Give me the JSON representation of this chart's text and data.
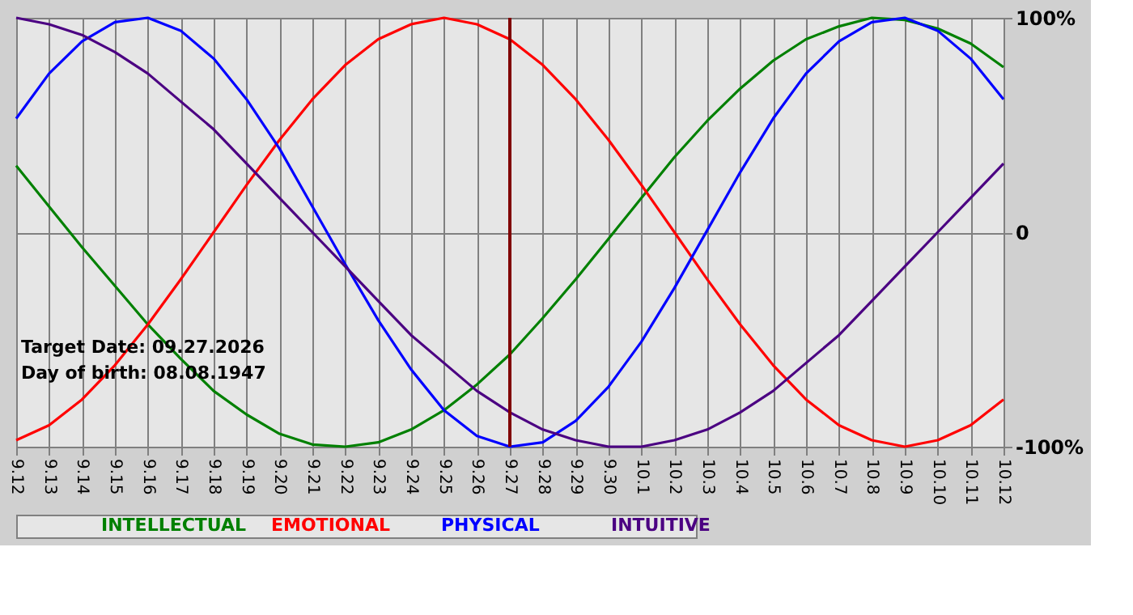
{
  "chart_data": {
    "type": "line",
    "categories": [
      "9.12",
      "9.13",
      "9.14",
      "9.15",
      "9.16",
      "9.17",
      "9.18",
      "9.19",
      "9.20",
      "9.21",
      "9.22",
      "9.23",
      "9.24",
      "9.25",
      "9.26",
      "9.27",
      "9.28",
      "9.29",
      "9.30",
      "10.1",
      "10.2",
      "10.3",
      "10.4",
      "10.5",
      "10.6",
      "10.7",
      "10.8",
      "10.9",
      "10.10",
      "10.11",
      "10.12"
    ],
    "series": [
      {
        "name": "INTELLECTUAL",
        "color": "#008000",
        "values": [
          31,
          12,
          -7,
          -25,
          -43,
          -59,
          -74,
          -85,
          -94,
          -99,
          -100,
          -98,
          -92,
          -83,
          -71,
          -57,
          -40,
          -22,
          -3,
          16,
          35,
          52,
          67,
          80,
          90,
          96,
          100,
          99,
          95,
          88,
          77
        ]
      },
      {
        "name": "EMOTIONAL",
        "color": "#ff0000",
        "values": [
          -97,
          -90,
          -78,
          -62,
          -43,
          -22,
          0,
          22,
          43,
          62,
          78,
          90,
          97,
          100,
          97,
          90,
          78,
          62,
          43,
          22,
          0,
          -22,
          -43,
          -62,
          -78,
          -90,
          -97,
          -100,
          -97,
          -90,
          -78
        ]
      },
      {
        "name": "PHYSICAL",
        "color": "#0000ff",
        "values": [
          53,
          74,
          89,
          98,
          100,
          94,
          81,
          62,
          39,
          12,
          -15,
          -41,
          -64,
          -83,
          -95,
          -100,
          -98,
          -88,
          -72,
          -51,
          -26,
          1,
          28,
          53,
          74,
          89,
          98,
          100,
          94,
          81,
          62
        ]
      },
      {
        "name": "INTUITIVE",
        "color": "#4b0082",
        "values": [
          100,
          97,
          92,
          84,
          74,
          61,
          48,
          32,
          16,
          0,
          -16,
          -32,
          -48,
          -61,
          -74,
          -84,
          -92,
          -97,
          -100,
          -100,
          -97,
          -92,
          -84,
          -74,
          -61,
          -48,
          -32,
          -16,
          0,
          16,
          32
        ]
      }
    ],
    "ylim": [
      -100,
      100
    ],
    "yticks": [
      {
        "value": -100,
        "label": "-100%"
      },
      0,
      {
        "value": 100,
        "label": "100%"
      }
    ],
    "grid": true,
    "legend": "bottom",
    "marker": "none",
    "line_style": "solid",
    "ref_lines": [
      {
        "axis": "x",
        "value": "9.27",
        "color": "#800000"
      }
    ],
    "annotations": [
      "Target Date: 09.27.2026",
      "Day of birth: 08.08.1947"
    ]
  }
}
